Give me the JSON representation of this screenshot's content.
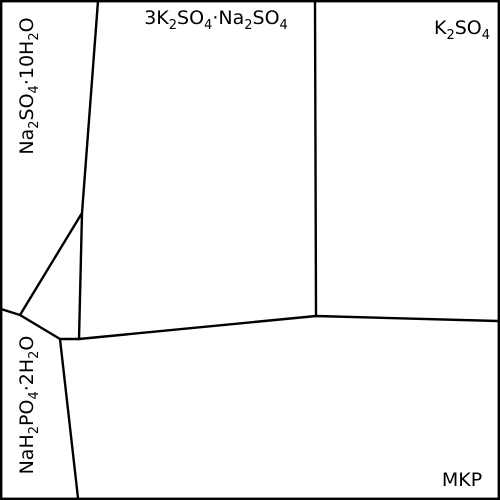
{
  "diagram": {
    "border_color": "#000000",
    "background_color": "#ffffff",
    "regions": {
      "k3na_sulfate": {
        "parts": [
          {
            "text": "3K",
            "sub": false
          },
          {
            "text": "2",
            "sub": true
          },
          {
            "text": "SO",
            "sub": false
          },
          {
            "text": "4",
            "sub": true
          },
          {
            "text": "·Na",
            "sub": false
          },
          {
            "text": "2",
            "sub": true
          },
          {
            "text": "SO",
            "sub": false
          },
          {
            "text": "4",
            "sub": true
          }
        ]
      },
      "potassium_sulfate": {
        "parts": [
          {
            "text": "K",
            "sub": false
          },
          {
            "text": "2",
            "sub": true
          },
          {
            "text": "SO",
            "sub": false
          },
          {
            "text": "4",
            "sub": true
          }
        ]
      },
      "glauber_salt": {
        "parts": [
          {
            "text": "Na",
            "sub": false
          },
          {
            "text": "2",
            "sub": true
          },
          {
            "text": "SO",
            "sub": false
          },
          {
            "text": "4",
            "sub": true
          },
          {
            "text": "·10H",
            "sub": false
          },
          {
            "text": "2",
            "sub": true
          },
          {
            "text": "O",
            "sub": false
          }
        ]
      },
      "sodium_dihydrogen_phosphate_dihydrate": {
        "parts": [
          {
            "text": "NaH",
            "sub": false
          },
          {
            "text": "2",
            "sub": true
          },
          {
            "text": "PO",
            "sub": false
          },
          {
            "text": "4",
            "sub": true
          },
          {
            "text": "·2H",
            "sub": false
          },
          {
            "text": "2",
            "sub": true
          },
          {
            "text": "O",
            "sub": false
          }
        ]
      },
      "mkp": {
        "parts": [
          {
            "text": "MKP",
            "sub": false
          }
        ]
      }
    }
  }
}
